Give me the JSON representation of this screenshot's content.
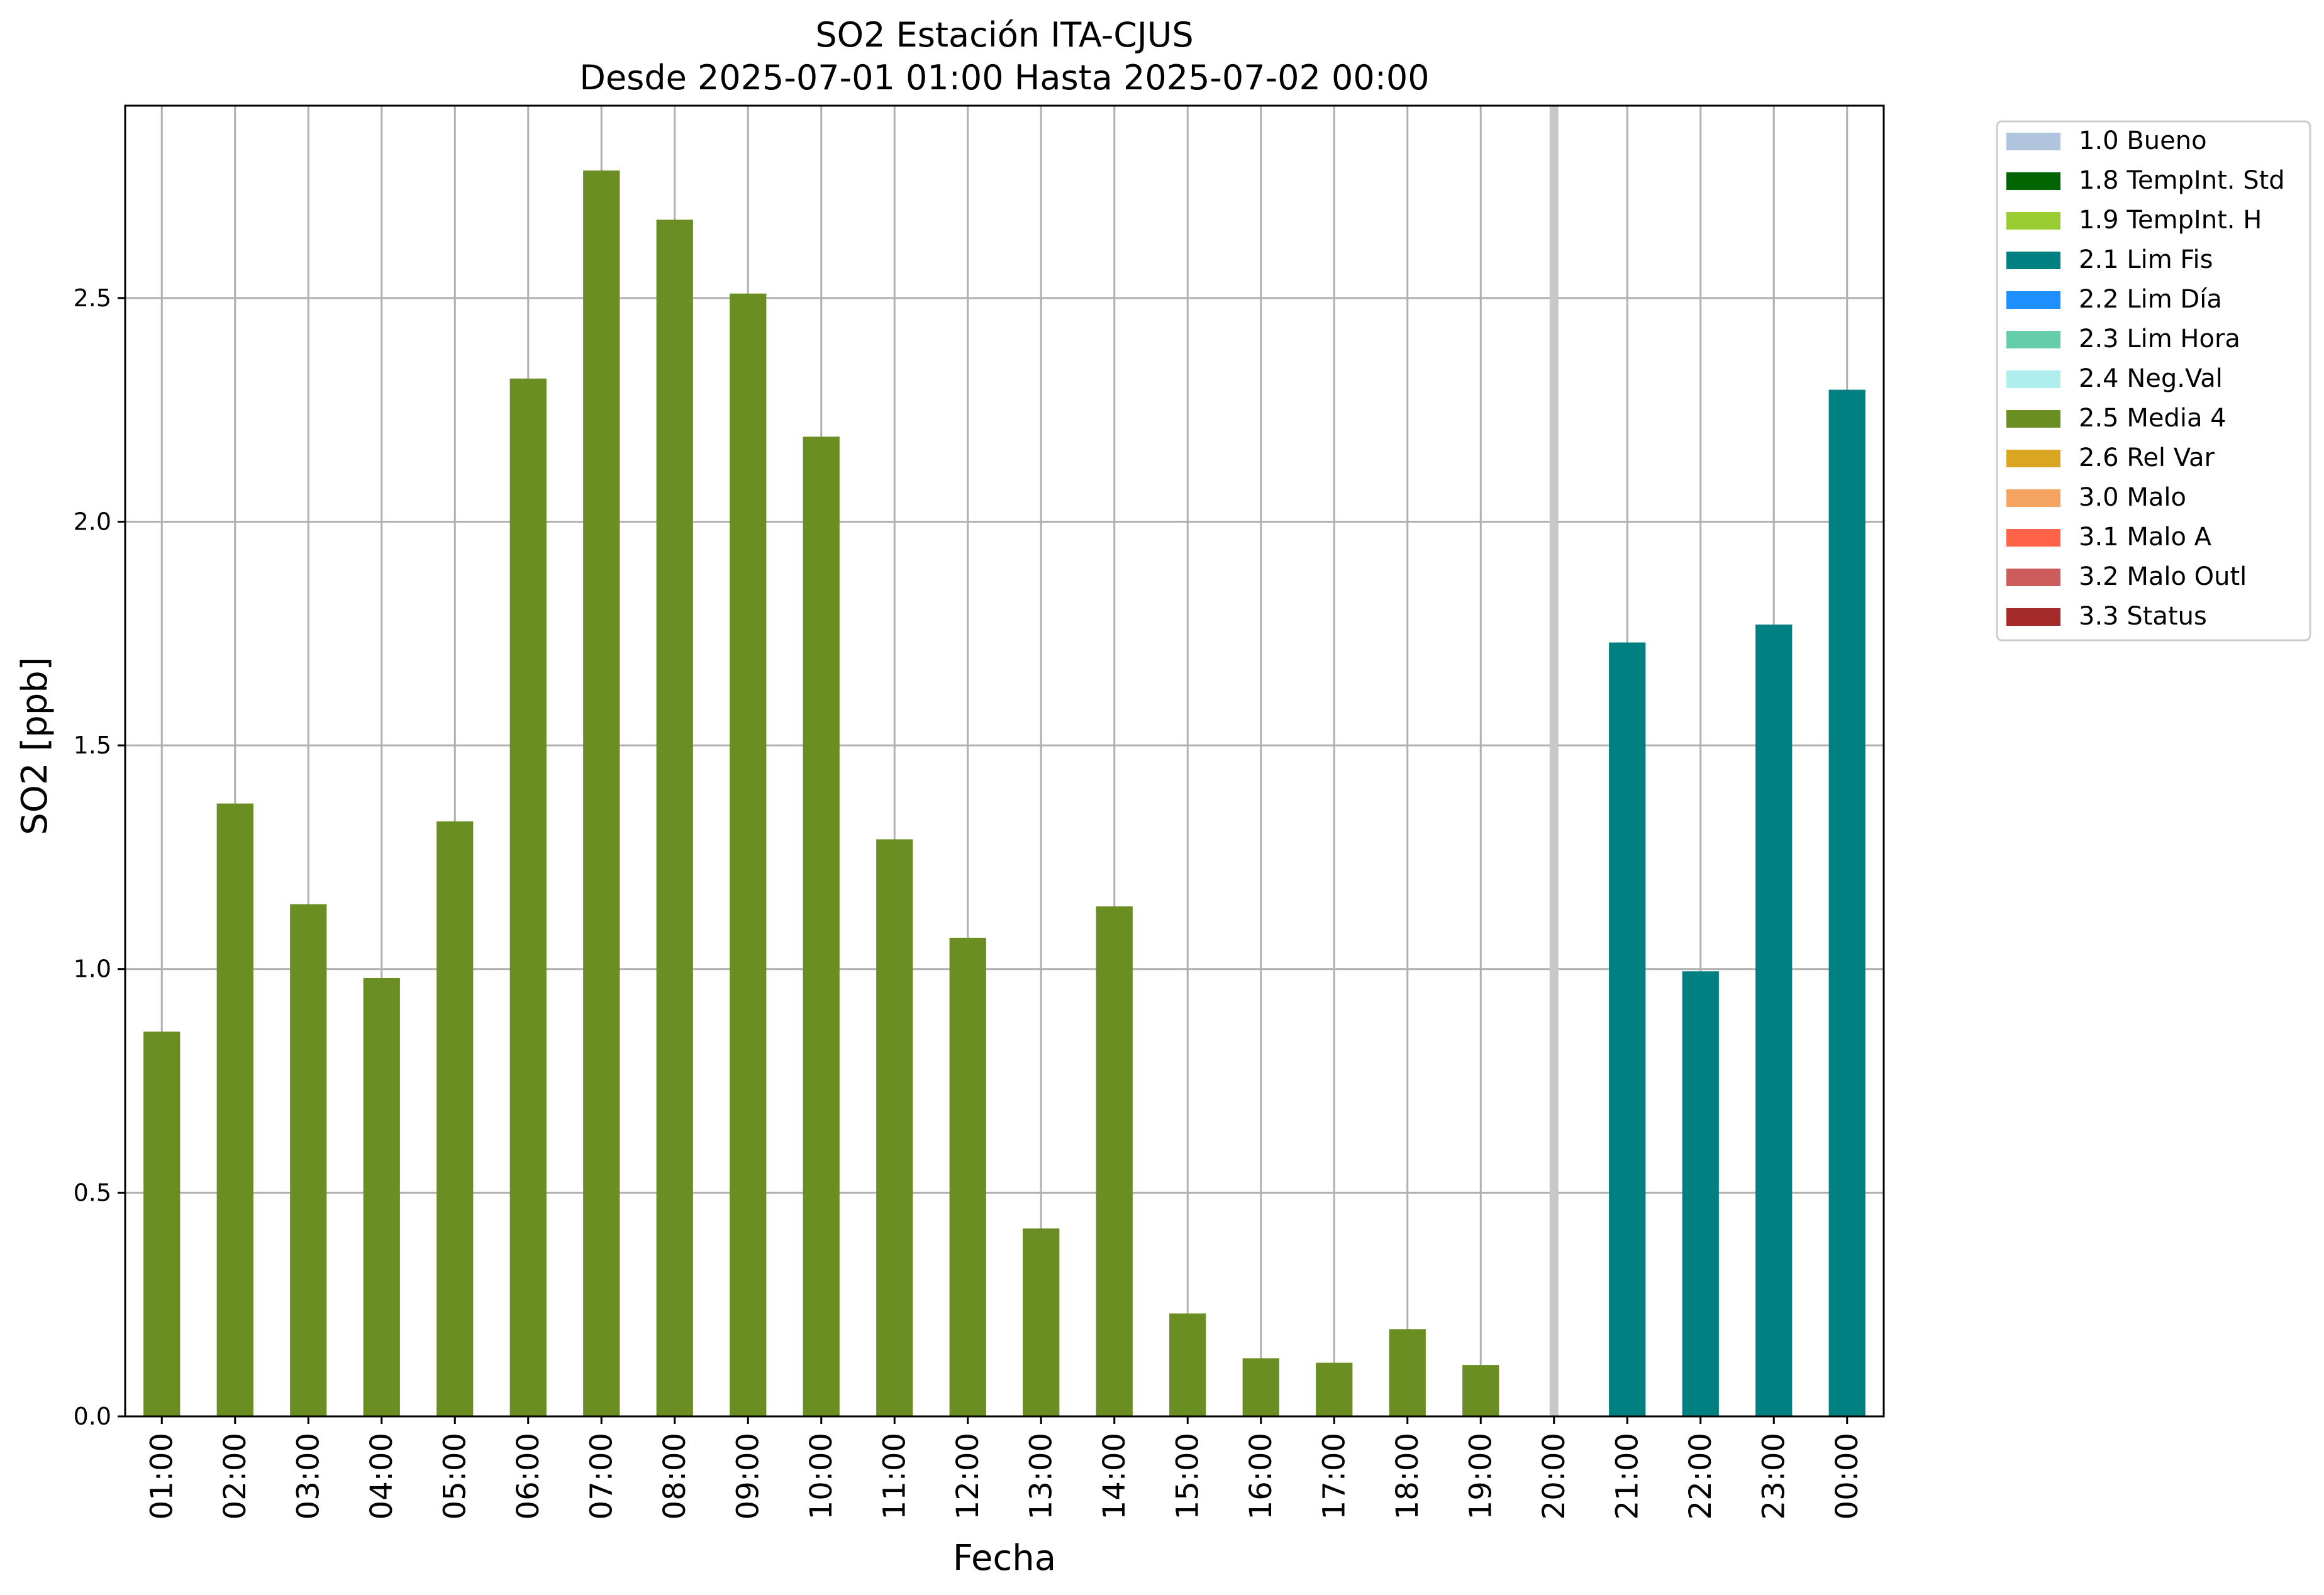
{
  "chart_data": {
    "type": "bar",
    "title": "SO2 Estación ITA-CJUS",
    "subtitle": "Desde 2025-07-01 01:00 Hasta 2025-07-02 00:00",
    "xlabel": "Fecha",
    "ylabel": "SO2 [ppb]",
    "ylim": [
      0,
      2.93
    ],
    "yticks": [
      0.0,
      0.5,
      1.0,
      1.5,
      2.0,
      2.5
    ],
    "ytick_labels": [
      "0.0",
      "0.5",
      "1.0",
      "1.5",
      "2.0",
      "2.5"
    ],
    "grid": true,
    "legend_position": "outside-top-right",
    "categories": [
      "01:00",
      "02:00",
      "03:00",
      "04:00",
      "05:00",
      "06:00",
      "07:00",
      "08:00",
      "09:00",
      "10:00",
      "11:00",
      "12:00",
      "13:00",
      "14:00",
      "15:00",
      "16:00",
      "17:00",
      "18:00",
      "19:00",
      "20:00",
      "21:00",
      "22:00",
      "23:00",
      "00:00"
    ],
    "values": [
      0.86,
      1.37,
      1.145,
      0.98,
      1.33,
      2.32,
      2.785,
      2.675,
      2.51,
      2.19,
      1.29,
      1.07,
      0.42,
      1.14,
      0.23,
      0.13,
      0.12,
      0.195,
      0.115,
      null,
      1.73,
      0.995,
      1.77,
      2.295
    ],
    "flags": [
      "2.5",
      "2.5",
      "2.5",
      "2.5",
      "2.5",
      "2.5",
      "2.5",
      "2.5",
      "2.5",
      "2.5",
      "2.5",
      "2.5",
      "2.5",
      "2.5",
      "2.5",
      "2.5",
      "2.5",
      "2.5",
      "2.5",
      null,
      "2.1",
      "2.1",
      "2.1",
      "2.1"
    ],
    "missing_marker_category": "20:00",
    "missing_marker_color": "#c8c8c8",
    "legend": [
      {
        "code": "1.0",
        "label": "1.0 Bueno",
        "color": "#b0c4de"
      },
      {
        "code": "1.8",
        "label": "1.8 TempInt. Std",
        "color": "#006400"
      },
      {
        "code": "1.9",
        "label": "1.9 TempInt. H",
        "color": "#9acd32"
      },
      {
        "code": "2.1",
        "label": "2.1 Lim Fis",
        "color": "#008080"
      },
      {
        "code": "2.2",
        "label": "2.2 Lim Día",
        "color": "#1e90ff"
      },
      {
        "code": "2.3",
        "label": "2.3 Lim Hora",
        "color": "#66cdaa"
      },
      {
        "code": "2.4",
        "label": "2.4 Neg.Val",
        "color": "#afeeee"
      },
      {
        "code": "2.5",
        "label": "2.5 Media 4",
        "color": "#6b8e23"
      },
      {
        "code": "2.6",
        "label": "2.6 Rel Var",
        "color": "#daa520"
      },
      {
        "code": "3.0",
        "label": "3.0 Malo",
        "color": "#f4a460"
      },
      {
        "code": "3.1",
        "label": "3.1 Malo A",
        "color": "#ff6347"
      },
      {
        "code": "3.2",
        "label": "3.2 Malo Outl",
        "color": "#cd5c5c"
      },
      {
        "code": "3.3",
        "label": "3.3 Status",
        "color": "#a52a2a"
      }
    ]
  }
}
